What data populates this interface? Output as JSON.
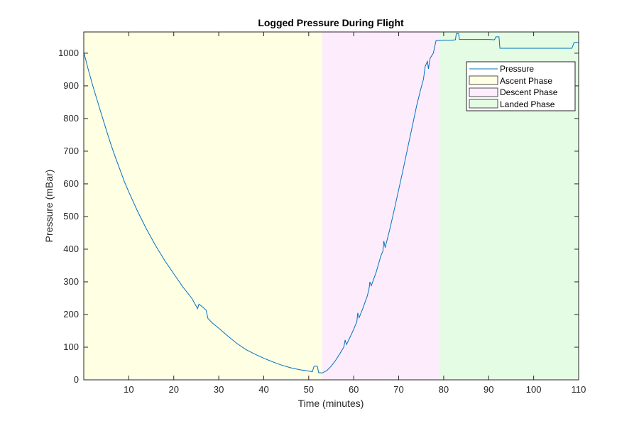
{
  "chart_data": {
    "type": "line",
    "title": "Logged Pressure During Flight",
    "xlabel": "Time (minutes)",
    "ylabel": "Pressure (mBar)",
    "xlim": [
      0,
      110
    ],
    "ylim": [
      0,
      1065
    ],
    "xticks": [
      10,
      20,
      30,
      40,
      50,
      60,
      70,
      80,
      90,
      100,
      110
    ],
    "yticks": [
      0,
      100,
      200,
      300,
      400,
      500,
      600,
      700,
      800,
      900,
      1000
    ],
    "grid": false,
    "legend_position": "top-right",
    "phases": [
      {
        "name": "Ascent Phase",
        "x_start": 0,
        "x_end": 53,
        "color": "#ffffe4"
      },
      {
        "name": "Descent Phase",
        "x_start": 53,
        "x_end": 79,
        "color": "#fcecfc"
      },
      {
        "name": "Landed Phase",
        "x_start": 79,
        "x_end": 110,
        "color": "#e4fce4"
      }
    ],
    "series": [
      {
        "name": "Pressure",
        "color": "#0072bd",
        "points": [
          [
            0,
            1003
          ],
          [
            1,
            950
          ],
          [
            2,
            900
          ],
          [
            3,
            855
          ],
          [
            4,
            810
          ],
          [
            5,
            765
          ],
          [
            6,
            722
          ],
          [
            7,
            682
          ],
          [
            8,
            645
          ],
          [
            9,
            608
          ],
          [
            10,
            575
          ],
          [
            12,
            515
          ],
          [
            14,
            460
          ],
          [
            16,
            410
          ],
          [
            18,
            365
          ],
          [
            20,
            325
          ],
          [
            22,
            285
          ],
          [
            24,
            250
          ],
          [
            25.3,
            218
          ],
          [
            25.6,
            232
          ],
          [
            26.5,
            222
          ],
          [
            27.2,
            213
          ],
          [
            27.6,
            188
          ],
          [
            28.5,
            175
          ],
          [
            30,
            158
          ],
          [
            32,
            134
          ],
          [
            34,
            112
          ],
          [
            36,
            93
          ],
          [
            38,
            79
          ],
          [
            40,
            66
          ],
          [
            42,
            55
          ],
          [
            44,
            45
          ],
          [
            46,
            37
          ],
          [
            48,
            31
          ],
          [
            50,
            27
          ],
          [
            50.8,
            25
          ],
          [
            51.2,
            42
          ],
          [
            51.9,
            42
          ],
          [
            52.2,
            22
          ],
          [
            53,
            21
          ],
          [
            54,
            28
          ],
          [
            55,
            42
          ],
          [
            56,
            60
          ],
          [
            57,
            82
          ],
          [
            57.8,
            100
          ],
          [
            58.1,
            122
          ],
          [
            58.4,
            108
          ],
          [
            59,
            125
          ],
          [
            60,
            155
          ],
          [
            60.7,
            178
          ],
          [
            60.9,
            205
          ],
          [
            61.2,
            190
          ],
          [
            62,
            218
          ],
          [
            63,
            256
          ],
          [
            63.4,
            278
          ],
          [
            63.6,
            300
          ],
          [
            63.9,
            288
          ],
          [
            65,
            330
          ],
          [
            66,
            378
          ],
          [
            66.5,
            395
          ],
          [
            66.7,
            425
          ],
          [
            67,
            405
          ],
          [
            68,
            460
          ],
          [
            69,
            520
          ],
          [
            70,
            582
          ],
          [
            71,
            645
          ],
          [
            72,
            710
          ],
          [
            73,
            775
          ],
          [
            74,
            840
          ],
          [
            75,
            895
          ],
          [
            75.5,
            920
          ],
          [
            75.9,
            960
          ],
          [
            76.4,
            975
          ],
          [
            76.6,
            952
          ],
          [
            77,
            985
          ],
          [
            77.7,
            1000
          ],
          [
            78.3,
            1038
          ],
          [
            80,
            1040
          ],
          [
            82,
            1040
          ],
          [
            82.6,
            1041
          ],
          [
            82.8,
            1060
          ],
          [
            83.3,
            1060
          ],
          [
            83.5,
            1042
          ],
          [
            90,
            1042
          ],
          [
            91.3,
            1041
          ],
          [
            91.6,
            1050
          ],
          [
            92.3,
            1050
          ],
          [
            92.5,
            1015
          ],
          [
            100,
            1015
          ],
          [
            108.5,
            1015
          ],
          [
            109,
            1033
          ],
          [
            110,
            1033
          ]
        ]
      }
    ]
  }
}
